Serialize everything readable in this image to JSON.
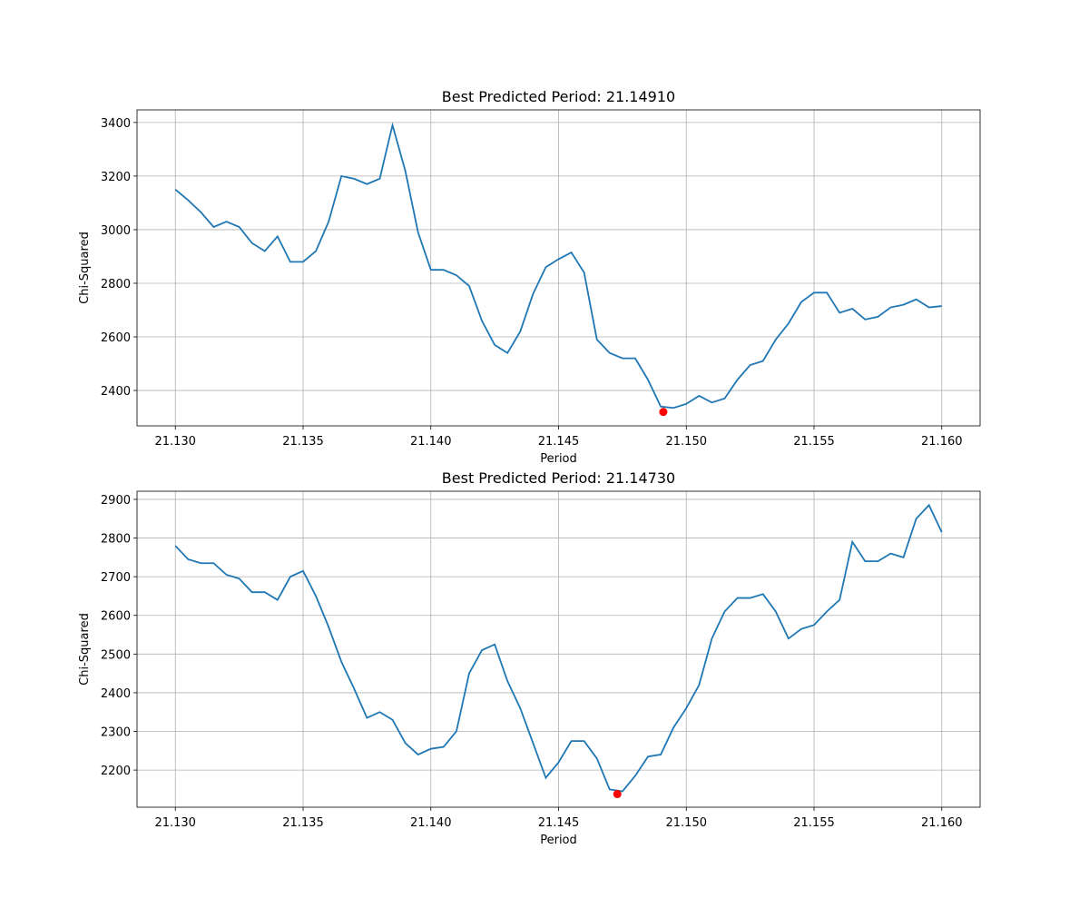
{
  "chart_data": [
    {
      "type": "line",
      "title": "Best Predicted Period: 21.14910",
      "xlabel": "Period",
      "ylabel": "Chi-Squared",
      "x": [
        21.13,
        21.1305,
        21.131,
        21.1315,
        21.132,
        21.1325,
        21.133,
        21.1335,
        21.134,
        21.1345,
        21.135,
        21.1355,
        21.136,
        21.1365,
        21.137,
        21.1375,
        21.138,
        21.1385,
        21.139,
        21.1395,
        21.14,
        21.1405,
        21.141,
        21.1415,
        21.142,
        21.1425,
        21.143,
        21.1435,
        21.144,
        21.1445,
        21.145,
        21.1455,
        21.146,
        21.1465,
        21.147,
        21.1475,
        21.148,
        21.1485,
        21.149,
        21.1495,
        21.15,
        21.1505,
        21.151,
        21.1515,
        21.152,
        21.1525,
        21.153,
        21.1535,
        21.154,
        21.1545,
        21.155,
        21.1555,
        21.156,
        21.1565,
        21.157,
        21.1575,
        21.158,
        21.1585,
        21.159,
        21.1595,
        21.16
      ],
      "series": [
        {
          "color": "#1f77b4",
          "values": [
            3150,
            3110,
            3065,
            3010,
            3030,
            3010,
            2950,
            2920,
            2975,
            2880,
            2880,
            2920,
            3030,
            3200,
            3190,
            3170,
            3190,
            3390,
            3220,
            2990,
            2850,
            2850,
            2830,
            2790,
            2660,
            2570,
            2540,
            2620,
            2760,
            2860,
            2890,
            2915,
            2840,
            2590,
            2540,
            2520,
            2520,
            2440,
            2340,
            2335,
            2350,
            2380,
            2355,
            2370,
            2440,
            2495,
            2510,
            2590,
            2650,
            2730,
            2765,
            2765,
            2690,
            2705,
            2665,
            2675,
            2710,
            2720,
            2740,
            2710,
            2715
          ]
        }
      ],
      "marker": {
        "x": 21.1491,
        "y": 2320,
        "color": "#ff0000"
      },
      "xlim": [
        21.1285,
        21.1615
      ],
      "ylim": [
        2268,
        3447
      ],
      "xticks": [
        {
          "value": 21.13,
          "label": "21.130"
        },
        {
          "value": 21.135,
          "label": "21.135"
        },
        {
          "value": 21.14,
          "label": "21.140"
        },
        {
          "value": 21.145,
          "label": "21.145"
        },
        {
          "value": 21.15,
          "label": "21.150"
        },
        {
          "value": 21.155,
          "label": "21.155"
        },
        {
          "value": 21.16,
          "label": "21.160"
        }
      ],
      "yticks": [
        2400,
        2600,
        2800,
        3000,
        3200,
        3400
      ],
      "grid": true
    },
    {
      "type": "line",
      "title": "Best Predicted Period: 21.14730",
      "xlabel": "Period",
      "ylabel": "Chi-Squared",
      "x": [
        21.13,
        21.1305,
        21.131,
        21.1315,
        21.132,
        21.1325,
        21.133,
        21.1335,
        21.134,
        21.1345,
        21.135,
        21.1355,
        21.136,
        21.1365,
        21.137,
        21.1375,
        21.138,
        21.1385,
        21.139,
        21.1395,
        21.14,
        21.1405,
        21.141,
        21.1415,
        21.142,
        21.1425,
        21.143,
        21.1435,
        21.144,
        21.1445,
        21.145,
        21.1455,
        21.146,
        21.1465,
        21.147,
        21.1475,
        21.148,
        21.1485,
        21.149,
        21.1495,
        21.15,
        21.1505,
        21.151,
        21.1515,
        21.152,
        21.1525,
        21.153,
        21.1535,
        21.154,
        21.1545,
        21.155,
        21.1555,
        21.156,
        21.1565,
        21.157,
        21.1575,
        21.158,
        21.1585,
        21.159,
        21.1595,
        21.16
      ],
      "series": [
        {
          "color": "#1f77b4",
          "values": [
            2780,
            2745,
            2735,
            2735,
            2705,
            2695,
            2660,
            2660,
            2640,
            2700,
            2715,
            2650,
            2570,
            2480,
            2410,
            2335,
            2350,
            2330,
            2270,
            2240,
            2255,
            2260,
            2300,
            2450,
            2510,
            2525,
            2430,
            2360,
            2270,
            2180,
            2220,
            2275,
            2275,
            2230,
            2150,
            2145,
            2185,
            2235,
            2240,
            2310,
            2360,
            2420,
            2540,
            2610,
            2645,
            2645,
            2655,
            2610,
            2540,
            2565,
            2575,
            2610,
            2640,
            2790,
            2740,
            2740,
            2760,
            2750,
            2850,
            2885,
            2815
          ]
        }
      ],
      "marker": {
        "x": 21.1473,
        "y": 2138,
        "color": "#ff0000"
      },
      "xlim": [
        21.1285,
        21.1615
      ],
      "ylim": [
        2104,
        2921
      ],
      "xticks": [
        {
          "value": 21.13,
          "label": "21.130"
        },
        {
          "value": 21.135,
          "label": "21.135"
        },
        {
          "value": 21.14,
          "label": "21.140"
        },
        {
          "value": 21.145,
          "label": "21.145"
        },
        {
          "value": 21.15,
          "label": "21.150"
        },
        {
          "value": 21.155,
          "label": "21.155"
        },
        {
          "value": 21.16,
          "label": "21.160"
        }
      ],
      "yticks": [
        2200,
        2300,
        2400,
        2500,
        2600,
        2700,
        2800,
        2900
      ],
      "grid": true
    }
  ]
}
